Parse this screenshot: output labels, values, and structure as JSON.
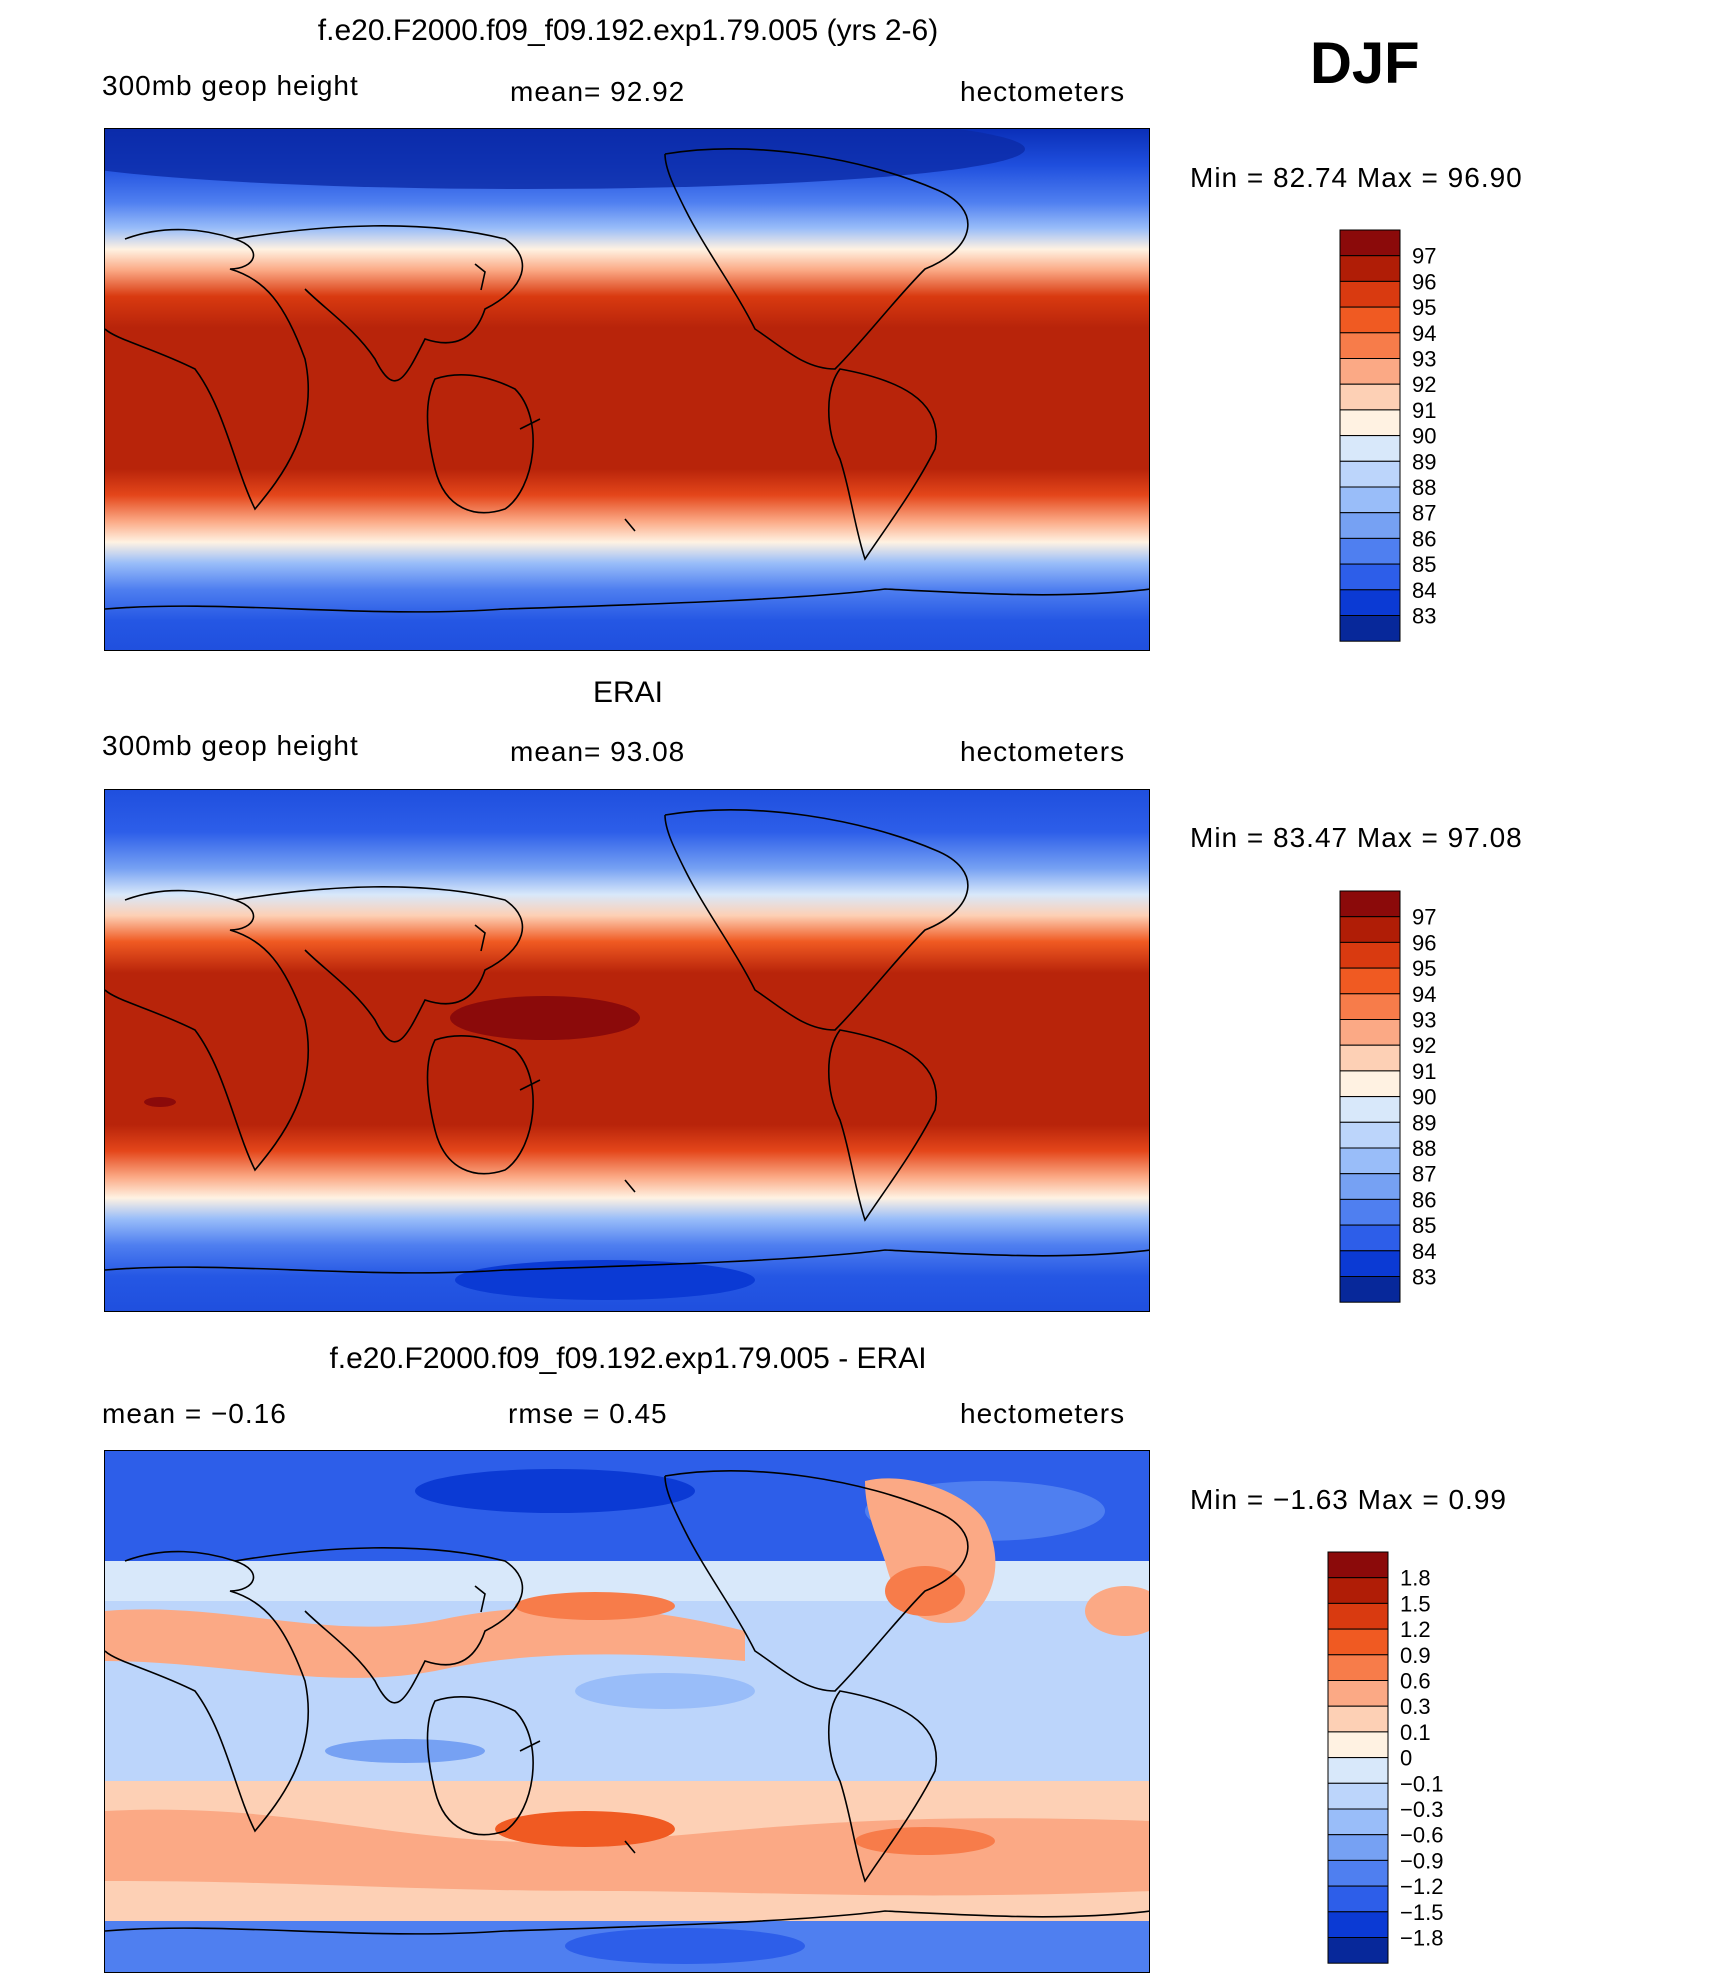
{
  "season": "DJF",
  "panels": [
    {
      "title": "f.e20.F2000.f09_f09.192.exp1.79.005 (yrs 2-6)",
      "left_label": "300mb  geop  height",
      "center_label": "mean=   92.92",
      "right_label": "hectometers",
      "minmax": "Min  =    82.74  Max  =    96.90",
      "colorbar_labels": [
        "97",
        "96",
        "95",
        "94",
        "93",
        "92",
        "91",
        "90",
        "89",
        "88",
        "87",
        "86",
        "85",
        "84",
        "83"
      ],
      "colorbar_colors": [
        "#8b0a0a",
        "#b01d06",
        "#d93a10",
        "#f05a22",
        "#f77c4a",
        "#fba985",
        "#fdd0b5",
        "#fff2e2",
        "#d8e8fa",
        "#bcd5fb",
        "#99bdf9",
        "#76a1f3",
        "#4f7ff0",
        "#2d5ee9",
        "#0b3ad4",
        "#07289a"
      ],
      "contour_min": 82,
      "contour_step": 1
    },
    {
      "title": "ERAI",
      "left_label": "300mb  geop  height",
      "center_label": "mean=   93.08",
      "right_label": "hectometers",
      "minmax": "Min  =    83.47  Max  =    97.08",
      "colorbar_labels": [
        "97",
        "96",
        "95",
        "94",
        "93",
        "92",
        "91",
        "90",
        "89",
        "88",
        "87",
        "86",
        "85",
        "84",
        "83"
      ],
      "colorbar_colors": [
        "#8b0a0a",
        "#b01d06",
        "#d93a10",
        "#f05a22",
        "#f77c4a",
        "#fba985",
        "#fdd0b5",
        "#fff2e2",
        "#d8e8fa",
        "#bcd5fb",
        "#99bdf9",
        "#76a1f3",
        "#4f7ff0",
        "#2d5ee9",
        "#0b3ad4",
        "#07289a"
      ],
      "contour_min": 82,
      "contour_step": 1
    },
    {
      "title": "f.e20.F2000.f09_f09.192.exp1.79.005 - ERAI",
      "left_label": "mean  =    −0.16",
      "center_label": "rmse  =     0.45",
      "right_label": "hectometers",
      "minmax": "Min  =   −1.63  Max  =     0.99",
      "colorbar_labels": [
        "1.8",
        "1.5",
        "1.2",
        "0.9",
        "0.6",
        "0.3",
        "0.1",
        "0",
        "−0.1",
        "−0.3",
        "−0.6",
        "−0.9",
        "−1.2",
        "−1.5",
        "−1.8"
      ],
      "colorbar_colors": [
        "#8b0a0a",
        "#b01d06",
        "#d93a10",
        "#f05a22",
        "#f77c4a",
        "#fba985",
        "#fdd0b5",
        "#fff2e2",
        "#d8e8fa",
        "#bcd5fb",
        "#99bdf9",
        "#76a1f3",
        "#4f7ff0",
        "#2d5ee9",
        "#0b3ad4",
        "#07289a"
      ]
    }
  ]
}
